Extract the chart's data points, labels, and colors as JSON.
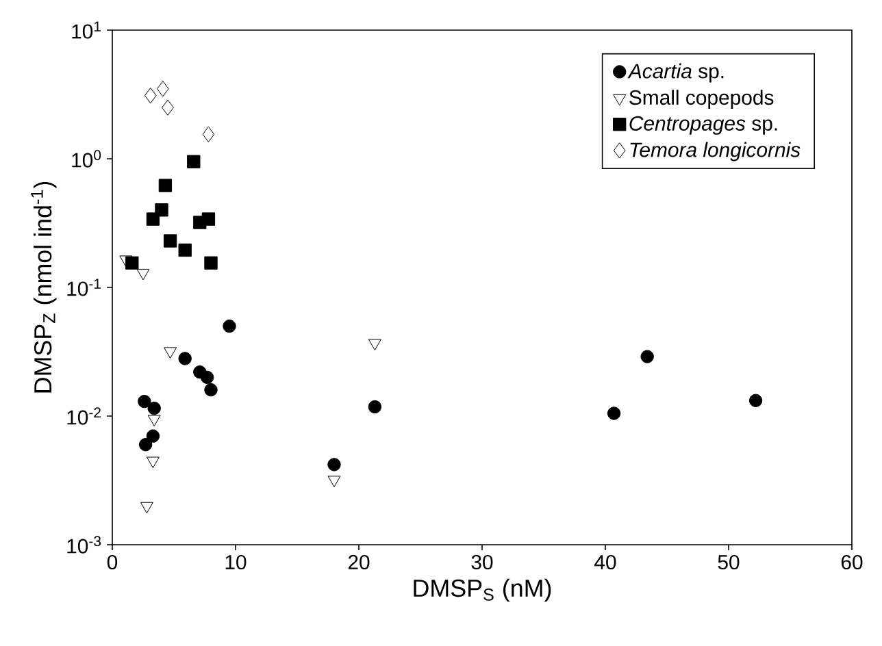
{
  "chart_data": {
    "type": "scatter",
    "xlabel": "DMSP$_{S}$ (nM)",
    "ylabel": "DMSP$_{Z}$ (nmol ind$^{-1}$)",
    "log": "y",
    "xlim": [
      0,
      60
    ],
    "ylim": [
      0.001,
      10
    ],
    "xticks": [
      0,
      10,
      20,
      30,
      40,
      50,
      60
    ],
    "yticks": [
      {
        "value": 0.001,
        "label": "10$^{-3}$"
      },
      {
        "value": 0.01,
        "label": "10$^{-2}$"
      },
      {
        "value": 0.1,
        "label": "10$^{-1}$"
      },
      {
        "value": 1,
        "label": "10$^{0}$"
      },
      {
        "value": 10,
        "label": "10$^{1}$"
      }
    ],
    "grid": false,
    "legend": "top right",
    "series": [
      {
        "name": "*Acartia* sp.",
        "color": "#000000",
        "marker": "circle",
        "x": [
          2.6,
          3.4,
          2.7,
          3.3,
          5.9,
          7.1,
          7.7,
          8.0,
          9.5,
          18,
          21.3,
          40.7,
          43.4,
          52.2
        ],
        "values": [
          0.013,
          0.0115,
          0.006,
          0.007,
          0.028,
          0.022,
          0.02,
          0.016,
          0.05,
          0.0042,
          0.0118,
          0.0105,
          0.029,
          0.0132
        ]
      },
      {
        "name": "Small copepods",
        "color": "#ffffff",
        "marker": "triangle",
        "x": [
          1.1,
          2.5,
          3.4,
          3.3,
          2.8,
          4.7,
          18,
          21.3
        ],
        "values": [
          0.165,
          0.13,
          0.0095,
          0.0045,
          0.002,
          0.032,
          0.0032,
          0.037
        ]
      },
      {
        "name": "*Centropages* sp.",
        "color": "#000000",
        "marker": "square",
        "x": [
          1.6,
          3.3,
          4.0,
          4.3,
          4.7,
          5.9,
          6.6,
          7.1,
          7.8,
          8.0
        ],
        "values": [
          0.155,
          0.34,
          0.4,
          0.62,
          0.23,
          0.195,
          0.95,
          0.32,
          0.34,
          0.155
        ]
      },
      {
        "name": "*Temora longicornis*",
        "color": "#ffffff",
        "marker": "diamond",
        "x": [
          3.1,
          4.1,
          4.5,
          7.8
        ],
        "values": [
          3.1,
          3.5,
          2.5,
          1.55
        ]
      }
    ]
  }
}
